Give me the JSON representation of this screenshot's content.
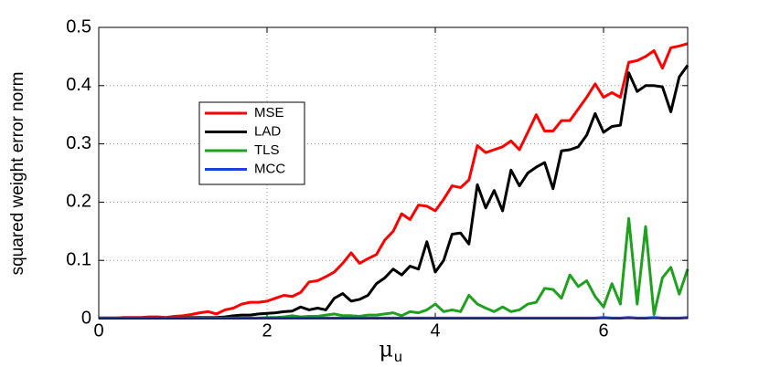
{
  "chart_data": {
    "type": "line",
    "xlabel": {
      "symbol": "μ",
      "subscript": "u"
    },
    "ylabel": "squared weight error norm",
    "xlim": [
      0,
      7
    ],
    "ylim": [
      0,
      0.5
    ],
    "xticks": [
      0,
      2,
      4,
      6
    ],
    "yticks": [
      0,
      0.1,
      0.2,
      0.3,
      0.4,
      0.5
    ],
    "grid": true,
    "legend": "upper left",
    "x": [
      0,
      0.1,
      0.2,
      0.3,
      0.4,
      0.5,
      0.6,
      0.7,
      0.8,
      0.9,
      1,
      1.1,
      1.2,
      1.3,
      1.4,
      1.5,
      1.6,
      1.7,
      1.8,
      1.9,
      2,
      2.1,
      2.2,
      2.3,
      2.4,
      2.5,
      2.6,
      2.7,
      2.8,
      2.9,
      3,
      3.1,
      3.2,
      3.3,
      3.4,
      3.5,
      3.6,
      3.7,
      3.8,
      3.9,
      4,
      4.1,
      4.2,
      4.3,
      4.4,
      4.5,
      4.6,
      4.7,
      4.8,
      4.9,
      5,
      5.1,
      5.2,
      5.3,
      5.4,
      5.5,
      5.6,
      5.7,
      5.8,
      5.9,
      6,
      6.1,
      6.2,
      6.3,
      6.4,
      6.5,
      6.6,
      6.7,
      6.8,
      6.9,
      7
    ],
    "series": [
      {
        "name": "MSE",
        "color": "#ff0000",
        "values": [
          0.001,
          0.001,
          0.001,
          0.002,
          0.002,
          0.002,
          0.003,
          0.003,
          0.002,
          0.004,
          0.005,
          0.007,
          0.01,
          0.012,
          0.008,
          0.015,
          0.018,
          0.025,
          0.028,
          0.028,
          0.03,
          0.035,
          0.04,
          0.038,
          0.045,
          0.063,
          0.065,
          0.072,
          0.08,
          0.095,
          0.113,
          0.095,
          0.103,
          0.11,
          0.135,
          0.15,
          0.18,
          0.17,
          0.195,
          0.193,
          0.185,
          0.205,
          0.228,
          0.225,
          0.238,
          0.297,
          0.285,
          0.29,
          0.295,
          0.305,
          0.29,
          0.32,
          0.35,
          0.322,
          0.322,
          0.34,
          0.34,
          0.36,
          0.38,
          0.403,
          0.38,
          0.388,
          0.38,
          0.44,
          0.443,
          0.45,
          0.46,
          0.43,
          0.465,
          0.468,
          0.472
        ]
      },
      {
        "name": "LAD",
        "color": "#000000",
        "values": [
          0.001,
          0.001,
          0.001,
          0.001,
          0.001,
          0.001,
          0.001,
          0.001,
          0.001,
          0.001,
          0.001,
          0.002,
          0.002,
          0.002,
          0.002,
          0.003,
          0.005,
          0.006,
          0.006,
          0.008,
          0.009,
          0.01,
          0.012,
          0.013,
          0.02,
          0.015,
          0.018,
          0.015,
          0.035,
          0.043,
          0.03,
          0.033,
          0.04,
          0.06,
          0.07,
          0.085,
          0.075,
          0.09,
          0.085,
          0.132,
          0.08,
          0.1,
          0.145,
          0.147,
          0.128,
          0.23,
          0.19,
          0.22,
          0.185,
          0.255,
          0.228,
          0.25,
          0.26,
          0.268,
          0.223,
          0.288,
          0.29,
          0.295,
          0.315,
          0.352,
          0.32,
          0.33,
          0.332,
          0.422,
          0.39,
          0.4,
          0.4,
          0.398,
          0.355,
          0.415,
          0.435
        ]
      },
      {
        "name": "TLS",
        "color": "#1fa01f",
        "values": [
          0.001,
          0.001,
          0.001,
          0.001,
          0.001,
          0.001,
          0.001,
          0.001,
          0.001,
          0.001,
          0.001,
          0.001,
          0.001,
          0.001,
          0.001,
          0.001,
          0.001,
          0.001,
          0.001,
          0.001,
          0.002,
          0.002,
          0.003,
          0.005,
          0.003,
          0.004,
          0.004,
          0.006,
          0.008,
          0.005,
          0.005,
          0.004,
          0.006,
          0.006,
          0.008,
          0.01,
          0.005,
          0.012,
          0.01,
          0.015,
          0.025,
          0.012,
          0.015,
          0.012,
          0.04,
          0.025,
          0.018,
          0.012,
          0.02,
          0.012,
          0.015,
          0.025,
          0.028,
          0.052,
          0.05,
          0.035,
          0.075,
          0.055,
          0.065,
          0.038,
          0.02,
          0.06,
          0.025,
          0.172,
          0.025,
          0.158,
          0.007,
          0.07,
          0.088,
          0.042,
          0.085
        ]
      },
      {
        "name": "MCC",
        "color": "#1f3fdf",
        "values": [
          0.001,
          0.001,
          0.001,
          0.001,
          0.001,
          0.001,
          0.001,
          0.001,
          0.001,
          0.001,
          0.001,
          0.001,
          0.001,
          0.001,
          0.001,
          0.001,
          0.001,
          0.001,
          0.001,
          0.001,
          0.001,
          0.001,
          0.001,
          0.001,
          0.001,
          0.001,
          0.001,
          0.001,
          0.001,
          0.001,
          0.001,
          0.001,
          0.001,
          0.001,
          0.001,
          0.001,
          0.001,
          0.001,
          0.001,
          0.001,
          0.001,
          0.001,
          0.001,
          0.001,
          0.001,
          0.001,
          0.001,
          0.001,
          0.001,
          0.001,
          0.001,
          0.001,
          0.001,
          0.001,
          0.001,
          0.001,
          0.001,
          0.001,
          0.001,
          0.001,
          0.002,
          0.001,
          0.001,
          0.002,
          0.001,
          0.001,
          0.002,
          0.001,
          0.001,
          0.001,
          0.002
        ]
      }
    ]
  }
}
